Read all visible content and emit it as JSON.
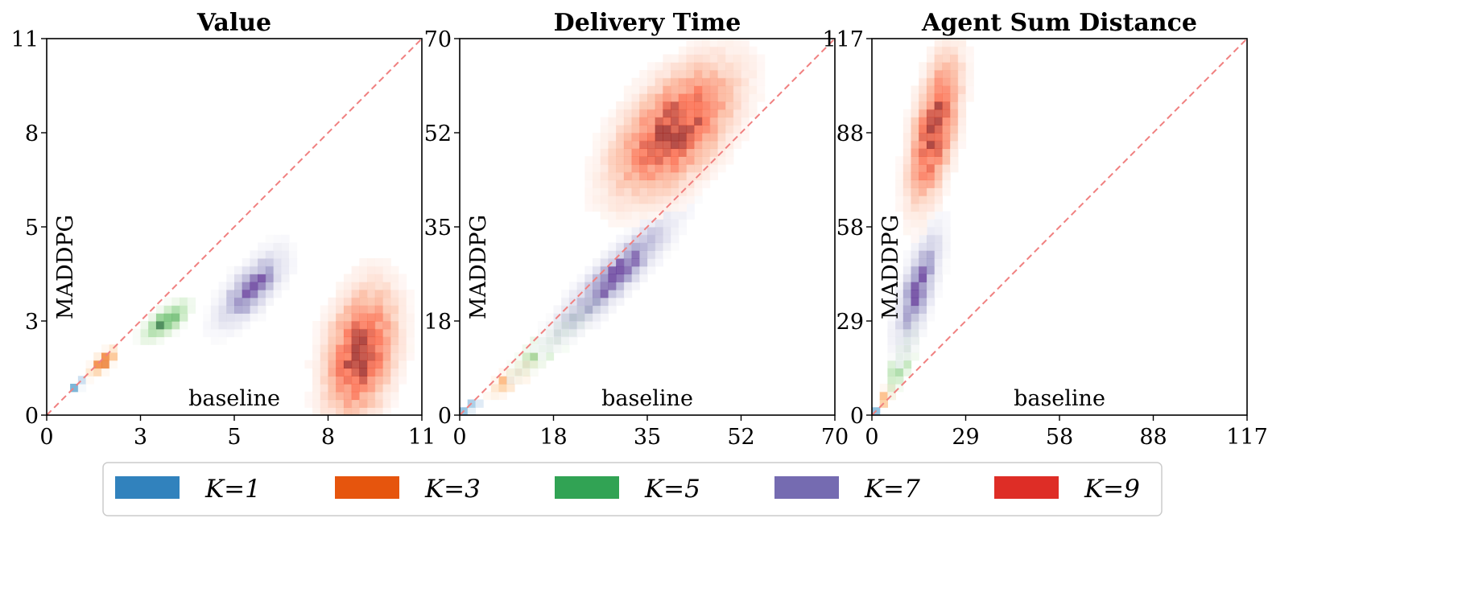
{
  "chart_data": [
    {
      "type": "heatmap",
      "title": "Value",
      "xlabel": "baseline",
      "ylabel": "MADDPG",
      "xlim": [
        0,
        11
      ],
      "ylim": [
        0,
        11
      ],
      "xtick_labels": [
        "0",
        "3",
        "5",
        "8",
        "11"
      ],
      "ytick_labels": [
        "0",
        "3",
        "5",
        "8",
        "11"
      ],
      "reference_line": "y = x",
      "series": [
        {
          "name": "K=1",
          "mean": [
            0.9,
            0.85
          ],
          "sd": [
            0.12,
            0.12
          ],
          "corr": 0.8
        },
        {
          "name": "K=3",
          "mean": [
            1.65,
            1.55
          ],
          "sd": [
            0.2,
            0.2
          ],
          "corr": 0.7
        },
        {
          "name": "K=5",
          "mean": [
            3.5,
            2.75
          ],
          "sd": [
            0.35,
            0.3
          ],
          "corr": 0.7
        },
        {
          "name": "K=7",
          "mean": [
            6.0,
            3.7
          ],
          "sd": [
            0.55,
            0.6
          ],
          "corr": 0.7
        },
        {
          "name": "K=9",
          "mean": [
            9.2,
            1.8
          ],
          "sd": [
            0.6,
            1.1
          ],
          "corr": 0.3
        }
      ]
    },
    {
      "type": "heatmap",
      "title": "Delivery Time",
      "xlabel": "baseline",
      "ylabel": "MADDPG",
      "xlim": [
        0,
        70
      ],
      "ylim": [
        0,
        70
      ],
      "xtick_labels": [
        "0",
        "18",
        "35",
        "52",
        "70"
      ],
      "ytick_labels": [
        "0",
        "18",
        "35",
        "52",
        "70"
      ],
      "reference_line": "y = x",
      "series": [
        {
          "name": "K=1",
          "mean": [
            1.5,
            1.3
          ],
          "sd": [
            1.2,
            0.8
          ],
          "corr": 0.8
        },
        {
          "name": "K=3",
          "mean": [
            11,
            8
          ],
          "sd": [
            2.4,
            2.0
          ],
          "corr": 0.85
        },
        {
          "name": "K=5",
          "mean": [
            19,
            15.5
          ],
          "sd": [
            4.0,
            3.5
          ],
          "corr": 0.9
        },
        {
          "name": "K=7",
          "mean": [
            29,
            26
          ],
          "sd": [
            6.0,
            6.0
          ],
          "corr": 0.9
        },
        {
          "name": "K=9",
          "mean": [
            40,
            53
          ],
          "sd": [
            6.5,
            7.0
          ],
          "corr": 0.55
        }
      ]
    },
    {
      "type": "heatmap",
      "title": "Agent Sum Distance",
      "xlabel": "baseline",
      "ylabel": "MADDPG",
      "xlim": [
        0,
        117
      ],
      "ylim": [
        0,
        117
      ],
      "xtick_labels": [
        "0",
        "29",
        "58",
        "88",
        "117"
      ],
      "ytick_labels": [
        "0",
        "29",
        "58",
        "88",
        "117"
      ],
      "reference_line": "y = x",
      "series": [
        {
          "name": "K=1",
          "mean": [
            1.8,
            1.2
          ],
          "sd": [
            0.8,
            0.8
          ],
          "corr": 0.5
        },
        {
          "name": "K=3",
          "mean": [
            5,
            6.5
          ],
          "sd": [
            1.2,
            1.8
          ],
          "corr": 0.6
        },
        {
          "name": "K=5",
          "mean": [
            10,
            19
          ],
          "sd": [
            2.5,
            5.5
          ],
          "corr": 0.75
        },
        {
          "name": "K=7",
          "mean": [
            14.5,
            40
          ],
          "sd": [
            4.0,
            10
          ],
          "corr": 0.7
        },
        {
          "name": "K=9",
          "mean": [
            19.5,
            89
          ],
          "sd": [
            4.5,
            13
          ],
          "corr": 0.55
        }
      ]
    }
  ],
  "legend": {
    "placement": "bottom",
    "items": [
      {
        "label": "K=1",
        "color": "#3182bd",
        "cmap": [
          "#c6dbef",
          "#6baed6",
          "#08306b"
        ]
      },
      {
        "label": "K=3",
        "color": "#e6550d",
        "cmap": [
          "#fdd0a2",
          "#fd8d3c",
          "#7f2704"
        ]
      },
      {
        "label": "K=5",
        "color": "#31a354",
        "cmap": [
          "#c7e9c0",
          "#74c476",
          "#00441b"
        ]
      },
      {
        "label": "K=7",
        "color": "#756bb1",
        "cmap": [
          "#dadaeb",
          "#9e9ac8",
          "#3f007d"
        ]
      },
      {
        "label": "K=9",
        "color": "#de2d26",
        "cmap": [
          "#fcbba1",
          "#fb6a4a",
          "#67000d"
        ]
      }
    ]
  },
  "diagonal_color": "#f08080"
}
